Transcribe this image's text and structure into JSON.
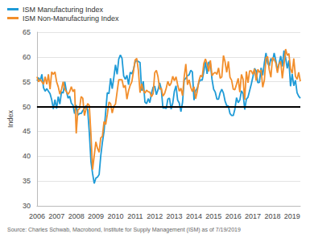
{
  "chart_data": {
    "type": "line",
    "y_label": "Index",
    "source": "Source: Charles Schwab, Macrobond, Institute for Supply Management (ISM) as of 7/19/2019",
    "categories": [
      "2006",
      null,
      null,
      null,
      null,
      null,
      null,
      null,
      null,
      null,
      null,
      null,
      "2007",
      null,
      null,
      null,
      null,
      null,
      null,
      null,
      null,
      null,
      null,
      null,
      "2008",
      null,
      null,
      null,
      null,
      null,
      null,
      null,
      null,
      null,
      null,
      null,
      "2009",
      null,
      null,
      null,
      null,
      null,
      null,
      null,
      null,
      null,
      null,
      null,
      "2010",
      null,
      null,
      null,
      null,
      null,
      null,
      null,
      null,
      null,
      null,
      null,
      "2011",
      null,
      null,
      null,
      null,
      null,
      null,
      null,
      null,
      null,
      null,
      null,
      "2012",
      null,
      null,
      null,
      null,
      null,
      null,
      null,
      null,
      null,
      null,
      null,
      "2013",
      null,
      null,
      null,
      null,
      null,
      null,
      null,
      null,
      null,
      null,
      null,
      "2014",
      null,
      null,
      null,
      null,
      null,
      null,
      null,
      null,
      null,
      null,
      null,
      "2015",
      null,
      null,
      null,
      null,
      null,
      null,
      null,
      null,
      null,
      null,
      null,
      "2016",
      null,
      null,
      null,
      null,
      null,
      null,
      null,
      null,
      null,
      null,
      null,
      "2017",
      null,
      null,
      null,
      null,
      null,
      null,
      null,
      null,
      null,
      null,
      null,
      "2018",
      null,
      null,
      null,
      null,
      null,
      null,
      null,
      null,
      null,
      null,
      null,
      "2019",
      null,
      null,
      null,
      null,
      null
    ],
    "series": [
      {
        "name": "ISM Manufacturing Index",
        "color": "#1f9bd7",
        "line_style": "solid",
        "values": [
          55.2,
          55.8,
          55.2,
          56.5,
          53.8,
          53.1,
          53.6,
          53.1,
          52.6,
          51.4,
          49.5,
          51.4,
          49.6,
          52.0,
          50.5,
          53.0,
          52.7,
          55.0,
          53.1,
          51.7,
          52.1,
          50.7,
          50.3,
          48.6,
          50.3,
          48.3,
          48.6,
          48.6,
          49.2,
          49.6,
          50.2,
          49.3,
          44.8,
          38.9,
          36.5,
          34.5,
          35.6,
          35.8,
          36.3,
          40.1,
          42.8,
          45.0,
          48.9,
          52.8,
          52.6,
          55.7,
          53.6,
          55.9,
          58.4,
          56.5,
          59.6,
          60.4,
          59.7,
          56.2,
          55.5,
          56.3,
          54.4,
          56.9,
          56.6,
          57.5,
          59.0,
          59.3,
          59.1,
          58.9,
          53.2,
          55.1,
          50.9,
          50.6,
          51.6,
          50.8,
          52.7,
          53.9,
          54.1,
          52.4,
          53.4,
          54.8,
          53.5,
          49.7,
          49.8,
          49.6,
          51.5,
          51.7,
          49.5,
          50.7,
          53.1,
          54.2,
          51.3,
          50.7,
          49.0,
          50.9,
          55.4,
          55.7,
          56.2,
          56.4,
          57.3,
          57.0,
          51.3,
          53.2,
          53.7,
          54.9,
          55.4,
          55.3,
          57.1,
          59.0,
          56.6,
          59.0,
          58.7,
          55.5,
          53.5,
          52.9,
          51.5,
          51.5,
          52.8,
          53.5,
          52.7,
          51.1,
          50.2,
          50.1,
          48.6,
          48.2,
          48.2,
          49.5,
          51.8,
          50.8,
          51.3,
          53.2,
          52.6,
          49.4,
          51.5,
          51.9,
          53.2,
          54.5,
          56.0,
          57.7,
          57.2,
          54.8,
          54.9,
          57.8,
          56.3,
          58.8,
          60.8,
          58.7,
          58.2,
          59.7,
          59.1,
          60.8,
          59.3,
          57.3,
          58.7,
          60.2,
          58.1,
          61.3,
          59.8,
          57.7,
          59.3,
          54.1,
          56.6,
          54.2,
          55.3,
          52.8,
          52.1,
          51.7
        ]
      },
      {
        "name": "ISM Non-Manufacturing Index",
        "color": "#f28e2b",
        "line_style": "solid",
        "values": [
          56.0,
          55.0,
          55.5,
          55.0,
          54.5,
          56.0,
          54.5,
          56.5,
          53.5,
          57.0,
          56.5,
          57.0,
          55.0,
          54.0,
          52.5,
          53.5,
          55.0,
          53.5,
          53.0,
          52.5,
          53.0,
          54.0,
          53.0,
          53.5,
          44.6,
          49.3,
          49.6,
          52.0,
          51.7,
          48.2,
          49.5,
          50.6,
          50.2,
          44.4,
          37.3,
          40.1,
          42.9,
          41.6,
          40.8,
          43.7,
          44.0,
          47.0,
          46.4,
          48.4,
          50.9,
          50.6,
          48.7,
          50.1,
          50.5,
          53.0,
          55.4,
          55.4,
          55.4,
          53.8,
          54.3,
          51.5,
          53.2,
          54.3,
          55.0,
          57.1,
          59.4,
          59.7,
          57.3,
          52.8,
          54.6,
          53.3,
          52.7,
          53.3,
          53.0,
          52.9,
          52.0,
          52.6,
          56.8,
          57.3,
          56.0,
          53.5,
          53.7,
          52.1,
          52.6,
          53.7,
          55.1,
          54.2,
          54.7,
          56.1,
          55.2,
          56.0,
          54.4,
          53.1,
          53.7,
          52.2,
          56.0,
          58.6,
          54.4,
          55.4,
          53.9,
          53.0,
          54.0,
          51.6,
          53.1,
          55.2,
          56.3,
          56.0,
          58.7,
          59.6,
          58.6,
          57.1,
          59.3,
          56.2,
          56.7,
          56.9,
          56.5,
          57.8,
          55.7,
          56.0,
          60.3,
          59.0,
          56.9,
          59.1,
          55.9,
          55.3,
          53.5,
          53.4,
          54.5,
          55.7,
          52.9,
          56.5,
          55.5,
          51.4,
          57.1,
          54.8,
          57.2,
          57.2,
          56.5,
          57.6,
          55.2,
          57.5,
          56.9,
          57.4,
          53.9,
          55.3,
          59.8,
          60.1,
          57.4,
          55.9,
          59.9,
          59.5,
          58.8,
          56.8,
          58.6,
          59.1,
          55.7,
          58.5,
          61.6,
          60.3,
          60.7,
          57.6,
          56.7,
          59.7,
          56.1,
          55.5,
          56.9,
          55.1
        ]
      }
    ],
    "reference_lines": [
      50
    ],
    "ylim": [
      30,
      65
    ],
    "yticks": [
      30,
      35,
      40,
      45,
      50,
      55,
      60,
      65
    ],
    "grid": true,
    "legend": "upper left"
  }
}
